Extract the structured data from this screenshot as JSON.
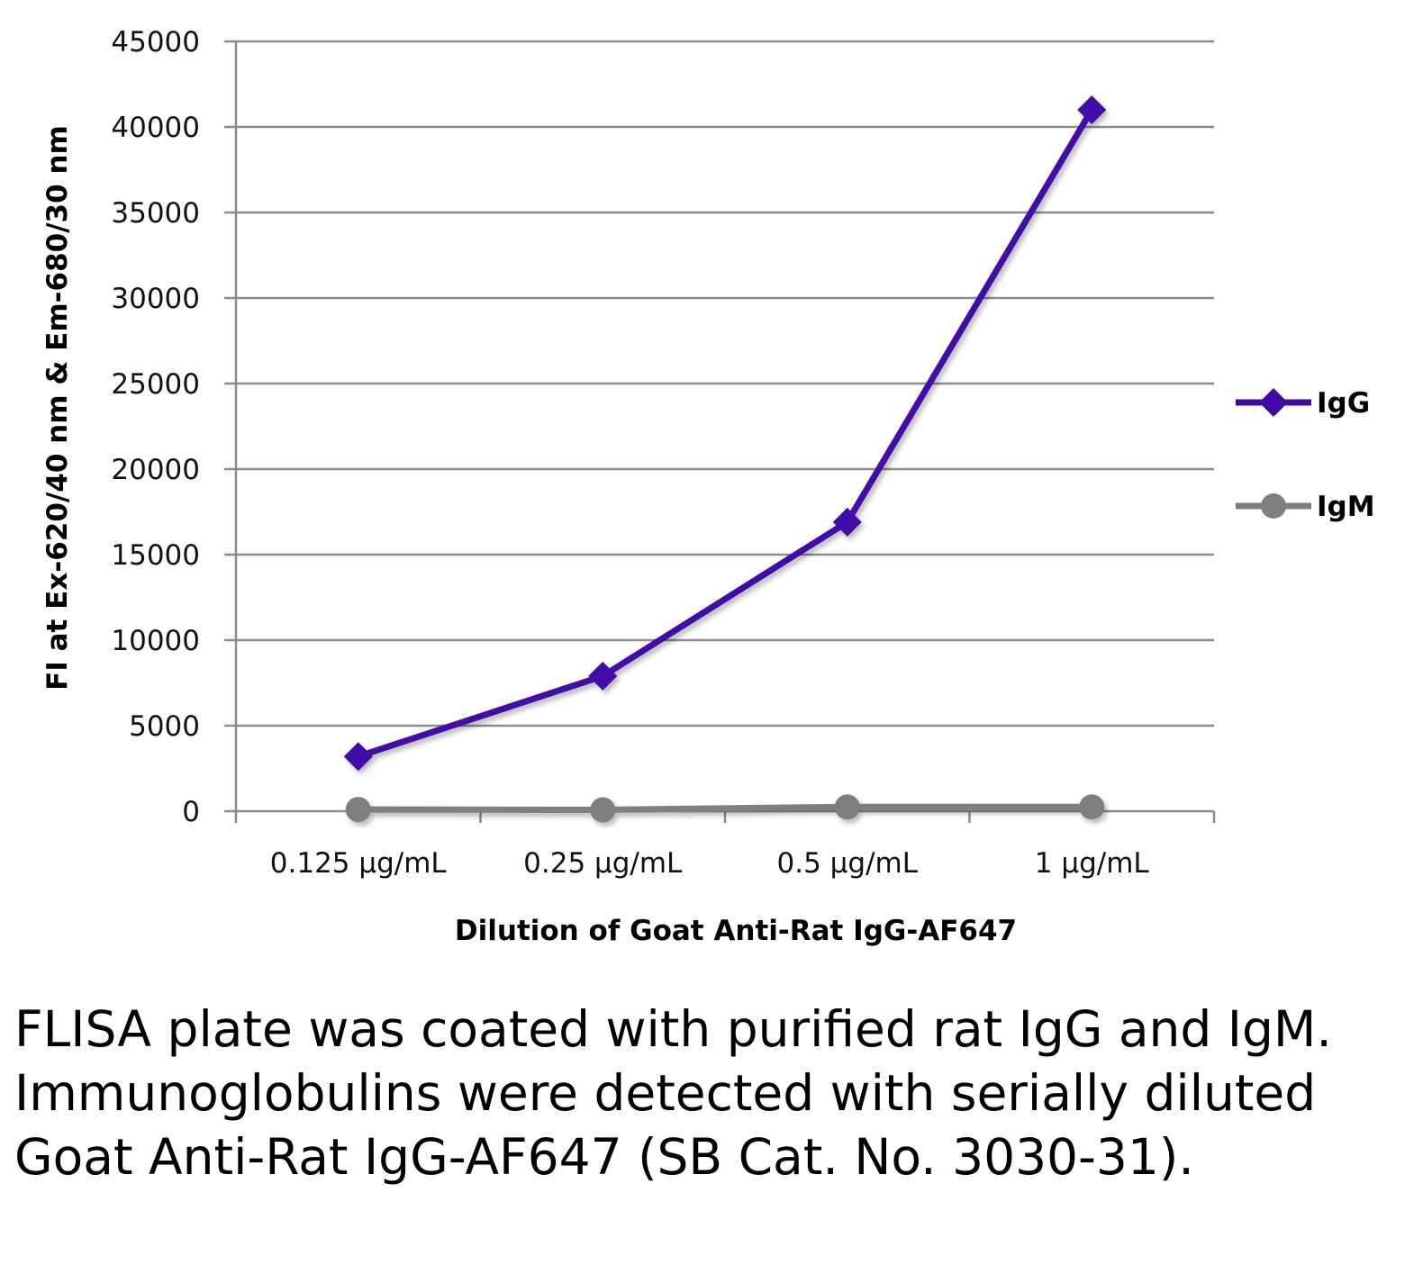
{
  "chart_data": {
    "type": "line",
    "categories": [
      "0.125 µg/mL",
      "0.25 µg/mL",
      "0.5 µg/mL",
      "1 µg/mL"
    ],
    "series": [
      {
        "name": "IgG",
        "values": [
          3200,
          7900,
          16900,
          41000
        ],
        "color": "#3f0aa8",
        "marker": "diamond"
      },
      {
        "name": "IgM",
        "values": [
          100,
          80,
          250,
          250
        ],
        "color": "#7f7f7f",
        "marker": "circle"
      }
    ],
    "xlabel": "Dilution of Goat Anti-Rat IgG-AF647",
    "ylabel": "FI at Ex-620/40 nm & Em-680/30 nm",
    "ylim": [
      0,
      45000
    ],
    "yticks": [
      0,
      5000,
      10000,
      15000,
      20000,
      25000,
      30000,
      35000,
      40000,
      45000
    ],
    "grid": true,
    "legend_position": "right"
  },
  "caption": "FLISA plate was coated with purified rat IgG and IgM.  Immunoglobulins were detected with serially diluted Goat Anti-Rat IgG-AF647 (SB Cat. No. 3030-31)."
}
